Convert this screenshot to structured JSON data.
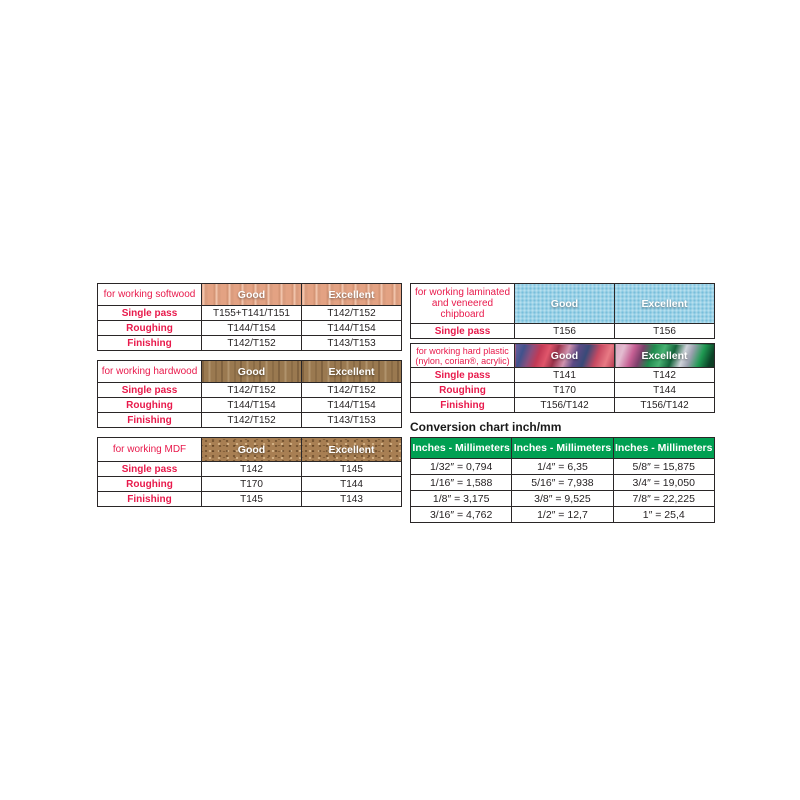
{
  "colors": {
    "red_text": "#e8194b",
    "border": "#2a2627",
    "green_header": "#00a052",
    "blue_header": "#7cc5e2",
    "softwood_header": "#e3a283",
    "hardwood_header": "#9a7950",
    "mdf_header": "#a87f53",
    "body_text": "#231f20"
  },
  "tables": {
    "softwood": {
      "label": "for working softwood",
      "good_header": "Good",
      "excellent_header": "Excellent",
      "rows": [
        {
          "label": "Single pass",
          "good": "T155+T141/T151",
          "excellent": "T142/T152"
        },
        {
          "label": "Roughing",
          "good": "T144/T154",
          "excellent": "T144/T154"
        },
        {
          "label": "Finishing",
          "good": "T142/T152",
          "excellent": "T143/T153"
        }
      ]
    },
    "hardwood": {
      "label": "for working hardwood",
      "good_header": "Good",
      "excellent_header": "Excellent",
      "rows": [
        {
          "label": "Single pass",
          "good": "T142/T152",
          "excellent": "T142/T152"
        },
        {
          "label": "Roughing",
          "good": "T144/T154",
          "excellent": "T144/T154"
        },
        {
          "label": "Finishing",
          "good": "T142/T152",
          "excellent": "T143/T153"
        }
      ]
    },
    "mdf": {
      "label": "for working MDF",
      "good_header": "Good",
      "excellent_header": "Excellent",
      "rows": [
        {
          "label": "Single pass",
          "good": "T142",
          "excellent": "T145"
        },
        {
          "label": "Roughing",
          "good": "T170",
          "excellent": "T144"
        },
        {
          "label": "Finishing",
          "good": "T145",
          "excellent": "T143"
        }
      ]
    },
    "laminated": {
      "label": "for working laminated and veneered chipboard",
      "good_header": "Good",
      "excellent_header": "Excellent",
      "rows": [
        {
          "label": "Single pass",
          "good": "T156",
          "excellent": "T156"
        }
      ]
    },
    "plastic": {
      "label": "for working hard plastic (nylon, corian®, acrylic)",
      "good_header": "Good",
      "excellent_header": "Excellent",
      "rows": [
        {
          "label": "Single pass",
          "good": "T141",
          "excellent": "T142"
        },
        {
          "label": "Roughing",
          "good": "T170",
          "excellent": "T144"
        },
        {
          "label": "Finishing",
          "good": "T156/T142",
          "excellent": "T156/T142"
        }
      ]
    }
  },
  "conversion": {
    "title": "Conversion chart inch/mm",
    "header": "Inches - Millimeters",
    "rows": [
      [
        "1/32″ = 0,794",
        "1/4″ = 6,35",
        "5/8″ = 15,875"
      ],
      [
        "1/16″ = 1,588",
        "5/16″ = 7,938",
        "3/4″ = 19,050"
      ],
      [
        "1/8″ = 3,175",
        "3/8″ = 9,525",
        "7/8″ = 22,225"
      ],
      [
        "3/16″ = 4,762",
        "1/2″ = 12,7",
        "1″ = 25,4"
      ]
    ]
  }
}
